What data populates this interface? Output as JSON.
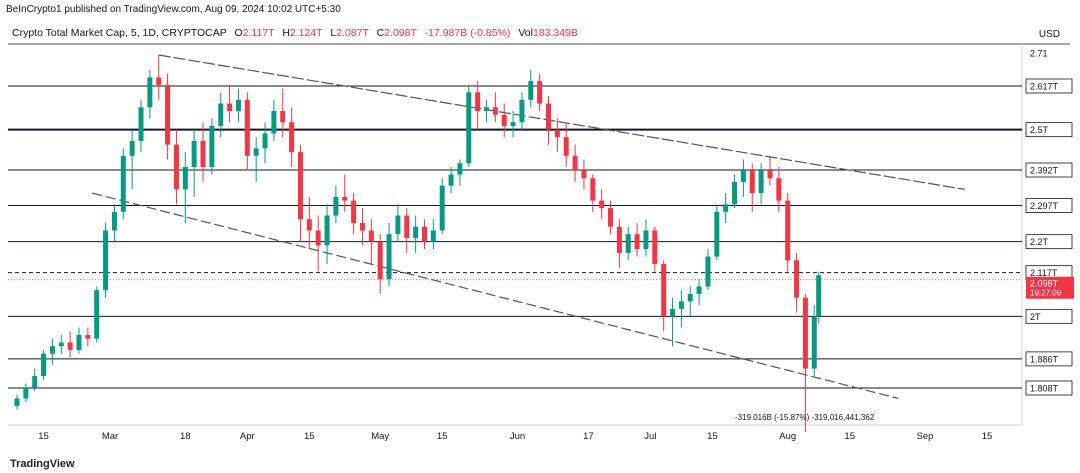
{
  "header": {
    "published": "BeInCrypto1 published on TradingView.com, Aug 09, 2024 10:02 UTC+5:30",
    "symbol": "Crypto Total Market Cap, 5, 1D, CRYPTOCAP",
    "open_label": "O",
    "open": "2.117T",
    "high_label": "H",
    "high": "2.124T",
    "low_label": "L",
    "low": "2.087T",
    "close_label": "C",
    "close": "2.098T",
    "change": "-17.987B (-0.85%)",
    "vol_label": "Vol",
    "vol": "183.349B",
    "currency": "USD"
  },
  "watermark": "TradingView",
  "colors": {
    "up": "#089981",
    "down": "#f23645",
    "line": "#131722",
    "channel": "#555555"
  },
  "chart_data": {
    "type": "candlestick",
    "title": "Crypto Total Market Cap, 5, 1D, CRYPTOCAP",
    "x_ticks": [
      "15",
      "Mar",
      "18",
      "Apr",
      "15",
      "May",
      "15",
      "Jun",
      "17",
      "Jul",
      "15",
      "Aug",
      "15",
      "Sep",
      "15"
    ],
    "y_ticks": [
      "2.71",
      "2.617T",
      "2.5T",
      "2.392T",
      "2.297T",
      "2.2T",
      "2.117T",
      "2T",
      "1.886T",
      "1.808T"
    ],
    "current_price_label": "2.098T",
    "countdown_label": "19:27:09",
    "horizontal_levels": [
      {
        "value": 2.617,
        "label": "2.617T",
        "weight": "normal"
      },
      {
        "value": 2.5,
        "label": "2.5T",
        "weight": "bold"
      },
      {
        "value": 2.392,
        "label": "2.392T",
        "weight": "normal"
      },
      {
        "value": 2.297,
        "label": "2.297T",
        "weight": "normal"
      },
      {
        "value": 2.2,
        "label": "2.2T",
        "weight": "normal"
      },
      {
        "value": 2.0,
        "label": "2T",
        "weight": "normal"
      },
      {
        "value": 1.886,
        "label": "1.886T",
        "weight": "normal"
      },
      {
        "value": 1.808,
        "label": "1.808T",
        "weight": "normal"
      }
    ],
    "last_price_line": {
      "value": 2.117,
      "style": "dashed"
    },
    "measure_annotation": "-319.016B (-15.87%) -319,016,441,362",
    "channel": {
      "upper": [
        {
          "date": "2024-03-12",
          "value": 2.7
        },
        {
          "date": "2024-09-10",
          "value": 2.34
        }
      ],
      "lower": [
        {
          "date": "2024-02-26",
          "value": 2.33
        },
        {
          "date": "2024-08-26",
          "value": 1.78
        }
      ]
    },
    "ohlc": [
      [
        "2024-02-09",
        1.76,
        1.79,
        1.75,
        1.78
      ],
      [
        "2024-02-11",
        1.78,
        1.82,
        1.77,
        1.81
      ],
      [
        "2024-02-13",
        1.81,
        1.86,
        1.8,
        1.84
      ],
      [
        "2024-02-15",
        1.84,
        1.91,
        1.83,
        1.9
      ],
      [
        "2024-02-17",
        1.9,
        1.94,
        1.87,
        1.92
      ],
      [
        "2024-02-19",
        1.92,
        1.95,
        1.9,
        1.93
      ],
      [
        "2024-02-21",
        1.93,
        1.96,
        1.89,
        1.91
      ],
      [
        "2024-02-23",
        1.91,
        1.97,
        1.9,
        1.95
      ],
      [
        "2024-02-25",
        1.95,
        1.97,
        1.92,
        1.94
      ],
      [
        "2024-02-27",
        1.94,
        2.08,
        1.93,
        2.07
      ],
      [
        "2024-02-29",
        2.07,
        2.25,
        2.05,
        2.23
      ],
      [
        "2024-03-02",
        2.23,
        2.3,
        2.2,
        2.28
      ],
      [
        "2024-03-04",
        2.28,
        2.45,
        2.26,
        2.43
      ],
      [
        "2024-03-06",
        2.43,
        2.5,
        2.34,
        2.47
      ],
      [
        "2024-03-08",
        2.47,
        2.58,
        2.44,
        2.56
      ],
      [
        "2024-03-10",
        2.56,
        2.66,
        2.53,
        2.64
      ],
      [
        "2024-03-12",
        2.64,
        2.7,
        2.58,
        2.62
      ],
      [
        "2024-03-14",
        2.62,
        2.65,
        2.42,
        2.46
      ],
      [
        "2024-03-16",
        2.46,
        2.5,
        2.3,
        2.34
      ],
      [
        "2024-03-18",
        2.34,
        2.44,
        2.25,
        2.4
      ],
      [
        "2024-03-20",
        2.4,
        2.5,
        2.32,
        2.47
      ],
      [
        "2024-03-22",
        2.47,
        2.52,
        2.36,
        2.4
      ],
      [
        "2024-03-24",
        2.4,
        2.53,
        2.38,
        2.51
      ],
      [
        "2024-03-26",
        2.51,
        2.6,
        2.48,
        2.57
      ],
      [
        "2024-03-28",
        2.57,
        2.62,
        2.52,
        2.55
      ],
      [
        "2024-03-30",
        2.55,
        2.61,
        2.52,
        2.58
      ],
      [
        "2024-04-01",
        2.58,
        2.6,
        2.39,
        2.43
      ],
      [
        "2024-04-03",
        2.43,
        2.48,
        2.36,
        2.45
      ],
      [
        "2024-04-05",
        2.45,
        2.52,
        2.41,
        2.49
      ],
      [
        "2024-04-07",
        2.49,
        2.58,
        2.47,
        2.55
      ],
      [
        "2024-04-09",
        2.55,
        2.61,
        2.48,
        2.52
      ],
      [
        "2024-04-11",
        2.52,
        2.56,
        2.4,
        2.44
      ],
      [
        "2024-04-13",
        2.44,
        2.46,
        2.2,
        2.26
      ],
      [
        "2024-04-15",
        2.26,
        2.32,
        2.18,
        2.23
      ],
      [
        "2024-04-17",
        2.23,
        2.27,
        2.12,
        2.19
      ],
      [
        "2024-04-19",
        2.19,
        2.3,
        2.14,
        2.27
      ],
      [
        "2024-04-21",
        2.27,
        2.35,
        2.25,
        2.32
      ],
      [
        "2024-04-23",
        2.32,
        2.38,
        2.28,
        2.31
      ],
      [
        "2024-04-25",
        2.31,
        2.33,
        2.22,
        2.25
      ],
      [
        "2024-04-27",
        2.25,
        2.29,
        2.19,
        2.23
      ],
      [
        "2024-04-29",
        2.23,
        2.26,
        2.14,
        2.2
      ],
      [
        "2024-05-01",
        2.2,
        2.22,
        2.06,
        2.1
      ],
      [
        "2024-05-03",
        2.1,
        2.25,
        2.08,
        2.22
      ],
      [
        "2024-05-05",
        2.22,
        2.3,
        2.2,
        2.27
      ],
      [
        "2024-05-07",
        2.27,
        2.29,
        2.17,
        2.21
      ],
      [
        "2024-05-09",
        2.21,
        2.27,
        2.17,
        2.24
      ],
      [
        "2024-05-11",
        2.24,
        2.26,
        2.18,
        2.2
      ],
      [
        "2024-05-13",
        2.2,
        2.26,
        2.18,
        2.23
      ],
      [
        "2024-05-15",
        2.23,
        2.37,
        2.22,
        2.35
      ],
      [
        "2024-05-17",
        2.35,
        2.4,
        2.33,
        2.38
      ],
      [
        "2024-05-19",
        2.38,
        2.42,
        2.35,
        2.41
      ],
      [
        "2024-05-21",
        2.41,
        2.62,
        2.4,
        2.6
      ],
      [
        "2024-05-23",
        2.6,
        2.63,
        2.5,
        2.55
      ],
      [
        "2024-05-25",
        2.55,
        2.58,
        2.52,
        2.56
      ],
      [
        "2024-05-27",
        2.56,
        2.6,
        2.52,
        2.54
      ],
      [
        "2024-05-29",
        2.54,
        2.57,
        2.48,
        2.51
      ],
      [
        "2024-05-31",
        2.51,
        2.55,
        2.48,
        2.52
      ],
      [
        "2024-06-02",
        2.52,
        2.6,
        2.5,
        2.58
      ],
      [
        "2024-06-04",
        2.58,
        2.66,
        2.56,
        2.63
      ],
      [
        "2024-06-06",
        2.63,
        2.65,
        2.55,
        2.57
      ],
      [
        "2024-06-08",
        2.57,
        2.59,
        2.46,
        2.5
      ],
      [
        "2024-06-10",
        2.5,
        2.53,
        2.44,
        2.48
      ],
      [
        "2024-06-12",
        2.48,
        2.52,
        2.4,
        2.43
      ],
      [
        "2024-06-14",
        2.43,
        2.46,
        2.36,
        2.39
      ],
      [
        "2024-06-16",
        2.39,
        2.42,
        2.34,
        2.37
      ],
      [
        "2024-06-18",
        2.37,
        2.38,
        2.28,
        2.31
      ],
      [
        "2024-06-20",
        2.31,
        2.34,
        2.26,
        2.29
      ],
      [
        "2024-06-22",
        2.29,
        2.31,
        2.22,
        2.24
      ],
      [
        "2024-06-24",
        2.24,
        2.26,
        2.13,
        2.17
      ],
      [
        "2024-06-26",
        2.17,
        2.24,
        2.15,
        2.22
      ],
      [
        "2024-06-28",
        2.22,
        2.25,
        2.16,
        2.18
      ],
      [
        "2024-06-30",
        2.18,
        2.26,
        2.16,
        2.23
      ],
      [
        "2024-07-02",
        2.23,
        2.24,
        2.12,
        2.14
      ],
      [
        "2024-07-04",
        2.14,
        2.15,
        1.96,
        2.0
      ],
      [
        "2024-07-06",
        2.0,
        2.05,
        1.92,
        2.02
      ],
      [
        "2024-07-08",
        2.02,
        2.07,
        1.97,
        2.04
      ],
      [
        "2024-07-10",
        2.04,
        2.08,
        2.0,
        2.06
      ],
      [
        "2024-07-12",
        2.06,
        2.1,
        2.03,
        2.08
      ],
      [
        "2024-07-14",
        2.08,
        2.18,
        2.07,
        2.16
      ],
      [
        "2024-07-16",
        2.16,
        2.3,
        2.15,
        2.28
      ],
      [
        "2024-07-18",
        2.28,
        2.33,
        2.25,
        2.3
      ],
      [
        "2024-07-20",
        2.3,
        2.38,
        2.29,
        2.36
      ],
      [
        "2024-07-22",
        2.36,
        2.42,
        2.32,
        2.39
      ],
      [
        "2024-07-24",
        2.39,
        2.41,
        2.28,
        2.33
      ],
      [
        "2024-07-26",
        2.33,
        2.41,
        2.3,
        2.39
      ],
      [
        "2024-07-28",
        2.39,
        2.43,
        2.35,
        2.37
      ],
      [
        "2024-07-30",
        2.37,
        2.4,
        2.28,
        2.31
      ],
      [
        "2024-08-01",
        2.31,
        2.33,
        2.12,
        2.15
      ],
      [
        "2024-08-03",
        2.15,
        2.17,
        2.01,
        2.05
      ],
      [
        "2024-08-05",
        2.05,
        2.06,
        1.69,
        1.86
      ],
      [
        "2024-08-07",
        1.86,
        2.03,
        1.84,
        2.0
      ],
      [
        "2024-08-08",
        2.0,
        2.12,
        1.98,
        2.11
      ]
    ]
  }
}
